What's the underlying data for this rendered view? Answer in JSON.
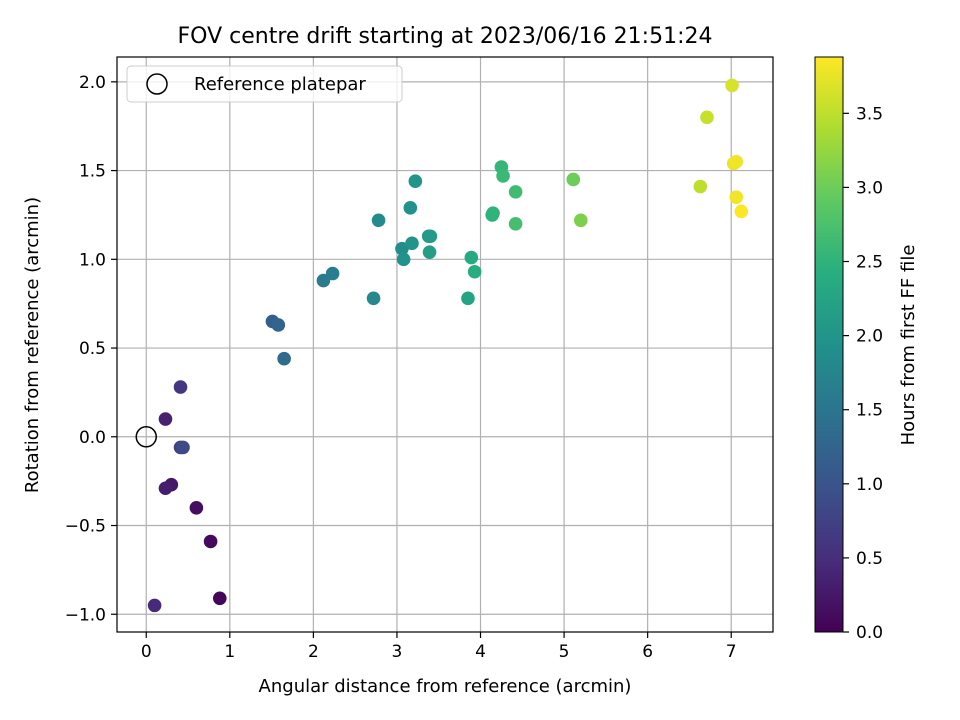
{
  "chart_data": {
    "type": "scatter",
    "title": "FOV centre drift starting at 2023/06/16 21:51:24",
    "xlabel": "Angular distance from reference (arcmin)",
    "ylabel": "Rotation from reference (arcmin)",
    "xlim": [
      -0.35,
      7.5
    ],
    "ylim": [
      -1.1,
      2.14
    ],
    "xticks": [
      0,
      1,
      2,
      3,
      4,
      5,
      6,
      7
    ],
    "xtick_labels": [
      "0",
      "1",
      "2",
      "3",
      "4",
      "5",
      "6",
      "7"
    ],
    "yticks": [
      -1.0,
      -0.5,
      0.0,
      0.5,
      1.0,
      1.5,
      2.0
    ],
    "ytick_labels": [
      "−1.0",
      "−0.5",
      "0.0",
      "0.5",
      "1.0",
      "1.5",
      "2.0"
    ],
    "grid": true,
    "legend": {
      "placement": "upper-left",
      "entries": [
        {
          "label": "Reference platepar",
          "marker": "open-circle"
        }
      ]
    },
    "reference_point": {
      "x": 0.0,
      "y": 0.0
    },
    "colorbar": {
      "label": "Hours from first FF file",
      "colormap": "viridis",
      "range": [
        0.0,
        3.88
      ],
      "ticks": [
        0.0,
        0.5,
        1.0,
        1.5,
        2.0,
        2.5,
        3.0,
        3.5
      ],
      "tick_labels": [
        "0.0",
        "0.5",
        "1.0",
        "1.5",
        "2.0",
        "2.5",
        "3.0",
        "3.5"
      ]
    },
    "points": [
      {
        "x": 0.88,
        "y": -0.91,
        "hours": 0.05
      },
      {
        "x": 0.77,
        "y": -0.59,
        "hours": 0.1
      },
      {
        "x": 0.6,
        "y": -0.4,
        "hours": 0.15
      },
      {
        "x": 0.3,
        "y": -0.27,
        "hours": 0.25
      },
      {
        "x": 0.23,
        "y": -0.29,
        "hours": 0.3
      },
      {
        "x": 0.23,
        "y": 0.1,
        "hours": 0.35
      },
      {
        "x": 0.1,
        "y": -0.95,
        "hours": 0.45
      },
      {
        "x": 0.41,
        "y": 0.28,
        "hours": 0.6
      },
      {
        "x": 0.41,
        "y": -0.06,
        "hours": 0.75
      },
      {
        "x": 0.44,
        "y": -0.06,
        "hours": 0.85
      },
      {
        "x": 1.51,
        "y": 0.65,
        "hours": 1.15
      },
      {
        "x": 1.58,
        "y": 0.63,
        "hours": 1.25
      },
      {
        "x": 1.65,
        "y": 0.44,
        "hours": 1.35
      },
      {
        "x": 2.12,
        "y": 0.88,
        "hours": 1.6
      },
      {
        "x": 2.23,
        "y": 0.92,
        "hours": 1.65
      },
      {
        "x": 2.72,
        "y": 0.78,
        "hours": 1.8
      },
      {
        "x": 2.78,
        "y": 1.22,
        "hours": 1.85
      },
      {
        "x": 3.06,
        "y": 1.06,
        "hours": 1.9
      },
      {
        "x": 3.08,
        "y": 1.0,
        "hours": 1.95
      },
      {
        "x": 3.16,
        "y": 1.29,
        "hours": 1.95
      },
      {
        "x": 3.18,
        "y": 1.09,
        "hours": 2.0
      },
      {
        "x": 3.22,
        "y": 1.44,
        "hours": 2.0
      },
      {
        "x": 3.38,
        "y": 1.13,
        "hours": 2.05
      },
      {
        "x": 3.4,
        "y": 1.13,
        "hours": 2.1
      },
      {
        "x": 3.39,
        "y": 1.04,
        "hours": 2.15
      },
      {
        "x": 3.85,
        "y": 0.78,
        "hours": 2.25
      },
      {
        "x": 3.89,
        "y": 1.01,
        "hours": 2.35
      },
      {
        "x": 3.93,
        "y": 0.93,
        "hours": 2.4
      },
      {
        "x": 4.14,
        "y": 1.25,
        "hours": 2.45
      },
      {
        "x": 4.15,
        "y": 1.26,
        "hours": 2.5
      },
      {
        "x": 4.25,
        "y": 1.52,
        "hours": 2.55
      },
      {
        "x": 4.27,
        "y": 1.47,
        "hours": 2.6
      },
      {
        "x": 4.42,
        "y": 1.38,
        "hours": 2.65
      },
      {
        "x": 4.42,
        "y": 1.2,
        "hours": 2.7
      },
      {
        "x": 5.11,
        "y": 1.45,
        "hours": 3.0
      },
      {
        "x": 5.2,
        "y": 1.22,
        "hours": 3.1
      },
      {
        "x": 6.63,
        "y": 1.41,
        "hours": 3.5
      },
      {
        "x": 6.71,
        "y": 1.8,
        "hours": 3.55
      },
      {
        "x": 7.01,
        "y": 1.98,
        "hours": 3.65
      },
      {
        "x": 7.03,
        "y": 1.54,
        "hours": 3.75
      },
      {
        "x": 7.06,
        "y": 1.55,
        "hours": 3.8
      },
      {
        "x": 7.06,
        "y": 1.35,
        "hours": 3.8
      },
      {
        "x": 7.12,
        "y": 1.27,
        "hours": 3.88
      }
    ]
  }
}
